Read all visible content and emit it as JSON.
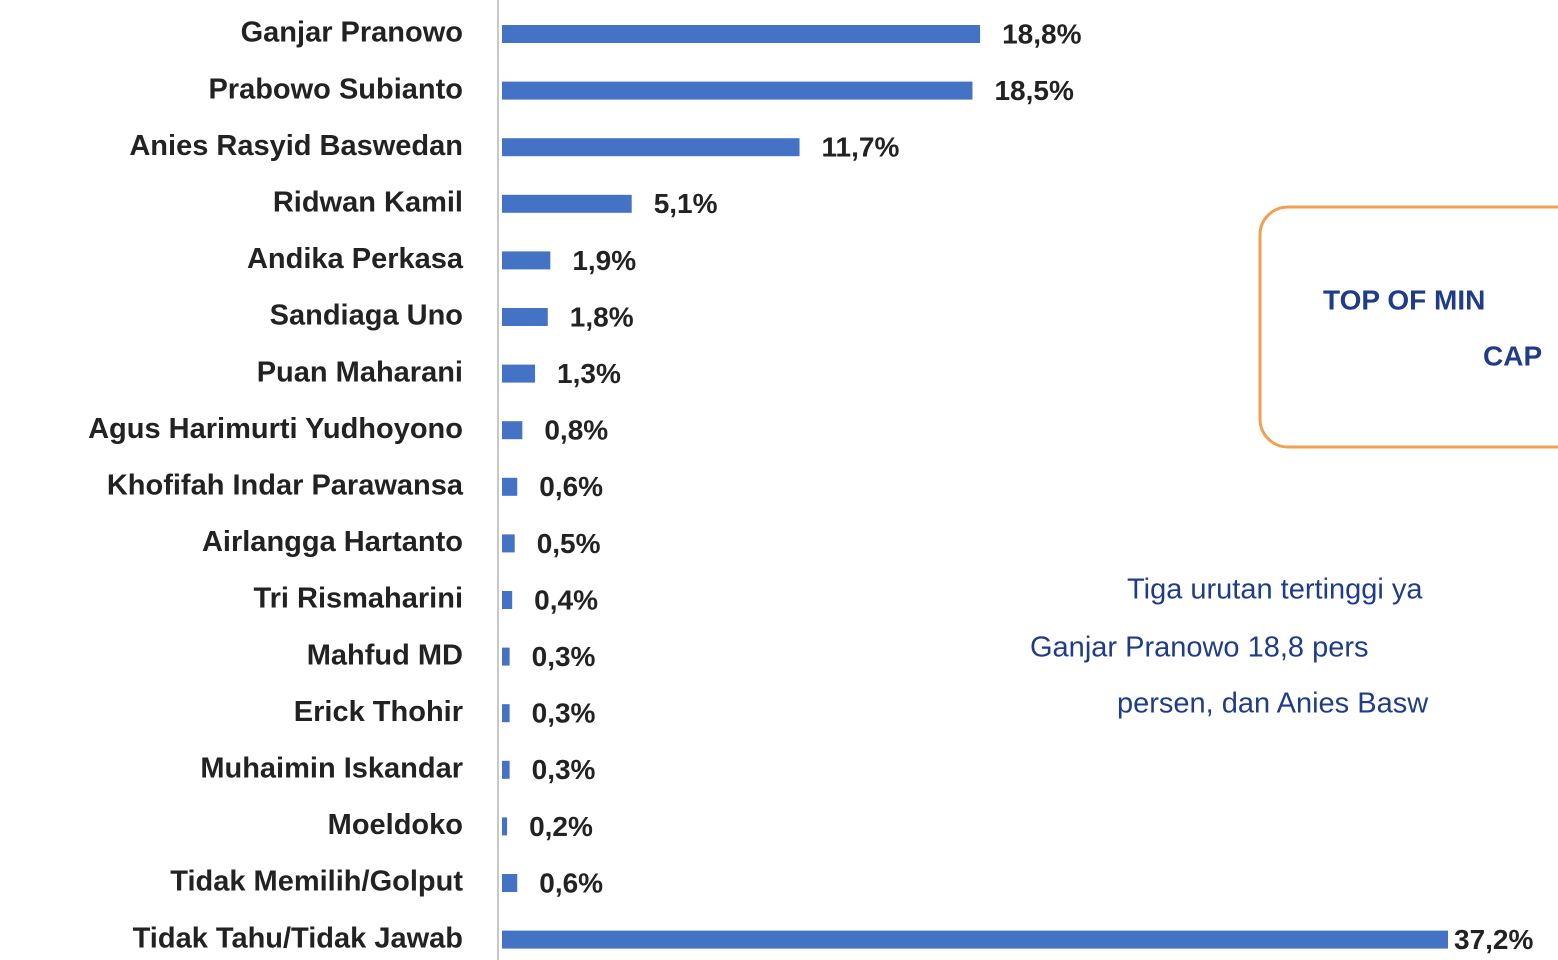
{
  "chart_data": {
    "type": "barh",
    "categories": [
      "Ganjar Pranowo",
      "Prabowo Subianto",
      "Anies Rasyid Baswedan",
      "Ridwan Kamil",
      "Andika Perkasa",
      "Sandiaga Uno",
      "Puan Maharani",
      "Agus Harimurti Yudhoyono",
      "Khofifah Indar Parawansa",
      "Airlangga Hartanto",
      "Tri Rismaharini",
      "Mahfud MD",
      "Erick Thohir",
      "Muhaimin Iskandar",
      "Moeldoko",
      "Tidak Memilih/Golput",
      "Tidak Tahu/Tidak Jawab"
    ],
    "values": [
      18.8,
      18.5,
      11.7,
      5.1,
      1.9,
      1.8,
      1.3,
      0.8,
      0.6,
      0.5,
      0.4,
      0.3,
      0.3,
      0.3,
      0.2,
      0.6,
      37.2
    ],
    "value_labels": [
      "18,8%",
      "18,5%",
      "11,7%",
      "5,1%",
      "1,9%",
      "1,8%",
      "1,3%",
      "0,8%",
      "0,6%",
      "0,5%",
      "0,4%",
      "0,3%",
      "0,3%",
      "0,3%",
      "0,2%",
      "0,6%",
      "37,2%"
    ],
    "color": "#4472c4",
    "annotation_title": [
      "TOP OF MIN",
      "CAP"
    ],
    "annotation_text": [
      "Tiga urutan tertinggi ya",
      "Ganjar Pranowo 18,8 pers",
      "persen, dan Anies Basw"
    ]
  }
}
